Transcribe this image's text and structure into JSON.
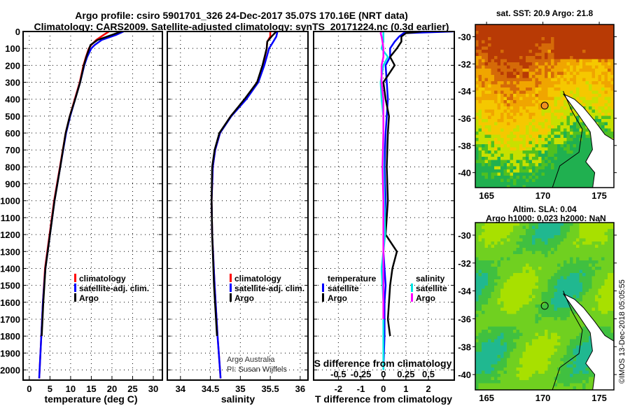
{
  "title_line1": "Argo profile: csiro 5901701_326 24-Dec-2017 35.07S 170.16E (NRT data)",
  "title_line2": "Climatology: CARS2009. Satellite-adjusted climatology: synTS_20171224.nc (0.3d earlier)",
  "credit_line1": "Argo Australia",
  "credit_line2": "PI: Susan Wijffels",
  "timestamp": "©IMOS 13-Dec-2018 05:05:55",
  "colors": {
    "climatology": "#ff0000",
    "satellite": "#0000ff",
    "argo": "#000000",
    "sal_satellite": "#00e5e5",
    "sal_argo": "#ff00ff"
  },
  "chart_data": [
    {
      "type": "line",
      "xlabel": "temperature (deg C)",
      "ylabel": "depth",
      "xlim": [
        -1.5,
        32.2
      ],
      "ylim": [
        2060,
        0
      ],
      "xticks": [
        0,
        5,
        10,
        15,
        20,
        25,
        30
      ],
      "yticks": [
        0,
        100,
        200,
        300,
        400,
        500,
        600,
        700,
        800,
        900,
        1000,
        1100,
        1200,
        1300,
        1400,
        1500,
        1600,
        1700,
        1800,
        1900,
        2000
      ],
      "legend": [
        "climatology",
        "satellite-adj. clim.",
        "Argo"
      ],
      "depth": [
        0,
        20,
        50,
        80,
        100,
        150,
        200,
        300,
        400,
        500,
        600,
        800,
        1000,
        1200,
        1400,
        1600,
        1800,
        2000,
        2050
      ],
      "series": [
        {
          "name": "climatology",
          "color": "#ff0000",
          "x": [
            19.3,
            18,
            16.2,
            15,
            14.4,
            13.7,
            13.1,
            12.2,
            11,
            9.8,
            8.8,
            7.4,
            6,
            4.9,
            3.8,
            3.3,
            2.9,
            2.5,
            2.4
          ]
        },
        {
          "name": "satellite-adj. clim.",
          "color": "#0000ff",
          "x": [
            22.8,
            21,
            17.5,
            15.8,
            15,
            14,
            13.3,
            12.3,
            11.1,
            9.9,
            8.9,
            7.5,
            6.1,
            5,
            3.9,
            3.3,
            2.9,
            2.5,
            2.4
          ]
        },
        {
          "name": "Argo",
          "color": "#000000",
          "x": [
            22.3,
            20,
            16.5,
            14.8,
            14.5,
            13.8,
            13.2,
            12.3,
            11.1,
            9.8,
            8.8,
            7.5,
            6.1,
            5,
            3.9,
            3.4,
            3,
            null,
            null
          ]
        }
      ]
    },
    {
      "type": "line",
      "xlabel": "salinity",
      "xlim": [
        33.78,
        36.13
      ],
      "ylim": [
        2060,
        0
      ],
      "xticks": [
        34,
        34.5,
        35,
        35.5,
        36
      ],
      "legend": [
        "climatology",
        "satellite-adj. clim.",
        "Argo"
      ],
      "depth": [
        0,
        30,
        60,
        100,
        200,
        300,
        400,
        500,
        600,
        700,
        800,
        1000,
        1200,
        1500,
        1800,
        2000,
        2050
      ],
      "series": [
        {
          "name": "climatology",
          "color": "#ff0000",
          "x": [
            35.5,
            35.5,
            35.45,
            35.44,
            35.38,
            35.28,
            35.08,
            34.84,
            34.66,
            34.58,
            34.54,
            34.52,
            34.53,
            34.57,
            34.62,
            34.66,
            34.67
          ]
        },
        {
          "name": "satellite-adj. clim.",
          "color": "#0000ff",
          "x": [
            35.62,
            35.6,
            35.55,
            35.48,
            35.4,
            35.3,
            35.1,
            34.85,
            34.66,
            34.58,
            34.54,
            34.52,
            34.53,
            34.57,
            34.62,
            34.66,
            34.67
          ]
        },
        {
          "name": "Argo",
          "color": "#000000",
          "x": [
            35.6,
            35.52,
            35.45,
            35.44,
            35.37,
            35.28,
            35.07,
            34.84,
            34.65,
            34.57,
            34.53,
            34.52,
            34.53,
            34.56,
            34.61,
            null,
            null
          ]
        }
      ]
    },
    {
      "type": "line",
      "xlabel": "T difference from climatology",
      "x2label": "S difference from climatology",
      "xlim": [
        -3.1,
        3.15
      ],
      "ylim": [
        2060,
        0
      ],
      "xticks": [
        -2,
        -1,
        0,
        1,
        2
      ],
      "x2ticks": [
        -0.5,
        -0.25,
        0,
        0.25,
        0.5
      ],
      "legend_temperature_header": "temperature",
      "legend_salinity_header": "salinity",
      "legend": [
        "satellite",
        "Argo",
        "satellite",
        "Argo"
      ],
      "depth": [
        0,
        10,
        30,
        60,
        100,
        150,
        200,
        300,
        400,
        500,
        600,
        800,
        1000,
        1200,
        1300,
        1400,
        1500,
        1600,
        1700,
        1800,
        2000
      ],
      "series": [
        {
          "name": "temperature satellite",
          "color": "#0000ff",
          "x": [
            3.1,
            0.9,
            0.7,
            0.5,
            0.3,
            0.3,
            0.1,
            0.15,
            0.2,
            0.15,
            0.1,
            0.05,
            0.1,
            0.05,
            0.0,
            0.05,
            0.1,
            0.05,
            0.05,
            0.05,
            0.0
          ]
        },
        {
          "name": "temperature Argo",
          "color": "#000000",
          "x": [
            1.7,
            1.0,
            0.8,
            0.8,
            0.6,
            0.3,
            0.5,
            0.0,
            0.1,
            0.25,
            0.2,
            0.15,
            0.2,
            0.1,
            0.6,
            0.4,
            0.3,
            0.25,
            0.2,
            0.3,
            null
          ]
        },
        {
          "name": "salinity satellite",
          "color": "#00e5e5",
          "x": [
            0.0,
            0.0,
            0.0,
            0.0,
            -0.02,
            0.05,
            0.0,
            -0.03,
            -0.02,
            0.0,
            0.0,
            0.0,
            0.01,
            0.02,
            0.0,
            -0.02,
            -0.01,
            0.0,
            0.0,
            0.0,
            0.0
          ]
        },
        {
          "name": "salinity Argo",
          "color": "#ff00ff",
          "x": [
            -0.02,
            -0.03,
            -0.02,
            -0.01,
            0.0,
            0.0,
            -0.02,
            -0.02,
            0.0,
            0.0,
            0.0,
            -0.01,
            0.0,
            0.0,
            0.0,
            0.0,
            0.0,
            0.0,
            0.0,
            null,
            null
          ]
        }
      ]
    },
    {
      "type": "heatmap",
      "title": "sat. SST: 20.9 Argo: 21.8",
      "xlim": [
        164,
        176.3
      ],
      "ylim": [
        -41.1,
        -29.1
      ],
      "xticks": [
        165,
        170,
        175
      ],
      "yticks": [
        -30,
        -32,
        -34,
        -36,
        -38,
        -40
      ],
      "argo_position": [
        170.16,
        -35.07
      ]
    },
    {
      "type": "heatmap",
      "title_line1": "Altim. SLA: 0.04",
      "title_line2": "Argo h1000: 0.023 h2000: NaN",
      "xlim": [
        164,
        176.3
      ],
      "ylim": [
        -41.1,
        -29.1
      ],
      "xticks": [
        165,
        170,
        175
      ],
      "yticks": [
        -30,
        -32,
        -34,
        -36,
        -38,
        -40
      ],
      "argo_position": [
        170.16,
        -35.07
      ]
    }
  ]
}
